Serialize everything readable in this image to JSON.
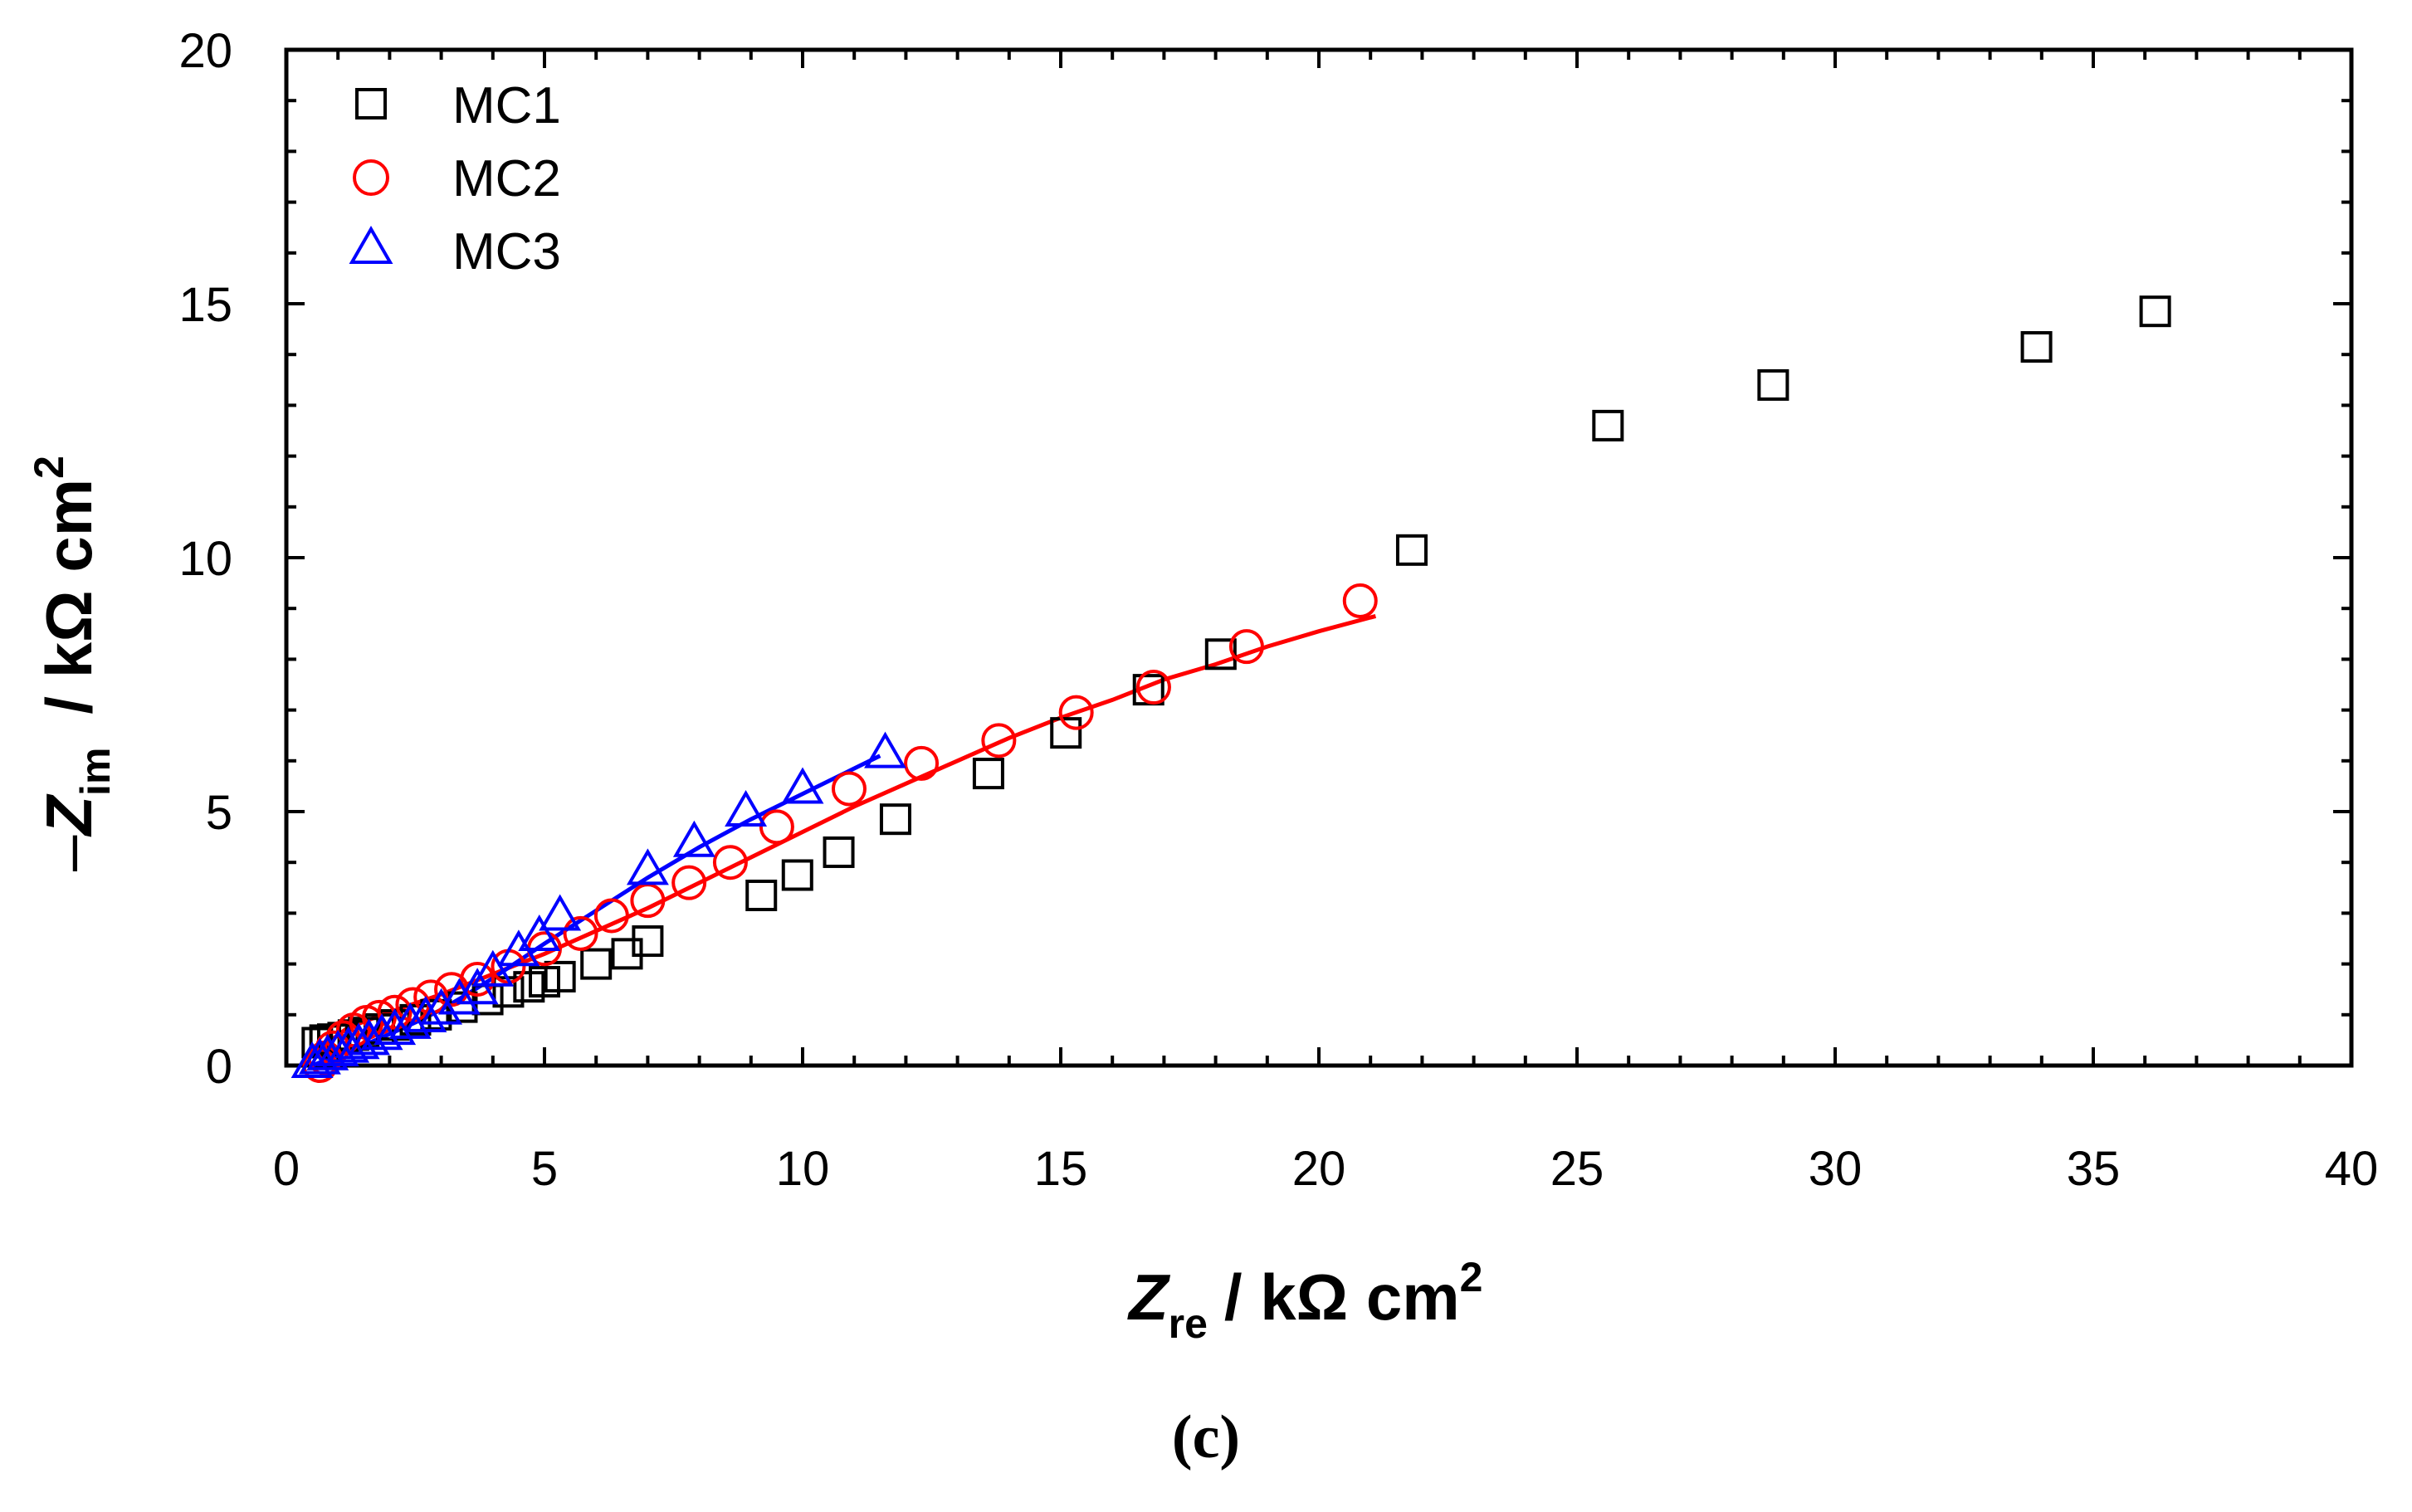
{
  "panel_label": "(c)",
  "chart_data": {
    "type": "scatter",
    "title": "",
    "xlabel": {
      "main": "Z",
      "sub": "re",
      "unit": "/ kΩ cm",
      "sup": "2"
    },
    "ylabel": {
      "prefix": "–",
      "main": "Z",
      "sub": "im",
      "unit": "/ kΩ cm",
      "sup": "2"
    },
    "xlim": [
      0,
      40
    ],
    "ylim": [
      0,
      20
    ],
    "xticks": [
      0,
      5,
      10,
      15,
      20,
      25,
      30,
      35,
      40
    ],
    "yticks": [
      0,
      5,
      10,
      15,
      20
    ],
    "grid": false,
    "legend_position": "top-left",
    "series": [
      {
        "name": "MC1",
        "marker": "square",
        "color": "#000000",
        "points": [
          [
            0.6,
            0.45
          ],
          [
            0.75,
            0.5
          ],
          [
            0.9,
            0.52
          ],
          [
            1.1,
            0.55
          ],
          [
            1.3,
            0.6
          ],
          [
            1.5,
            0.65
          ],
          [
            1.8,
            0.72
          ],
          [
            2.1,
            0.8
          ],
          [
            2.5,
            0.9
          ],
          [
            2.9,
            1.0
          ],
          [
            3.4,
            1.15
          ],
          [
            3.9,
            1.3
          ],
          [
            4.3,
            1.45
          ],
          [
            4.7,
            1.55
          ],
          [
            5.0,
            1.65
          ],
          [
            5.3,
            1.75
          ],
          [
            6.0,
            2.0
          ],
          [
            6.6,
            2.2
          ],
          [
            7.0,
            2.45
          ],
          [
            9.2,
            3.35
          ],
          [
            9.9,
            3.75
          ],
          [
            10.7,
            4.2
          ],
          [
            11.8,
            4.85
          ],
          [
            13.6,
            5.75
          ],
          [
            15.1,
            6.55
          ],
          [
            16.7,
            7.4
          ],
          [
            18.1,
            8.1
          ],
          [
            21.8,
            10.15
          ],
          [
            25.6,
            12.6
          ],
          [
            28.8,
            13.4
          ],
          [
            33.9,
            14.15
          ],
          [
            36.2,
            14.85
          ]
        ]
      },
      {
        "name": "MC2",
        "marker": "circle",
        "color": "#ff0000",
        "points": [
          [
            0.65,
            0.0
          ],
          [
            0.75,
            0.15
          ],
          [
            0.9,
            0.35
          ],
          [
            1.1,
            0.55
          ],
          [
            1.3,
            0.7
          ],
          [
            1.55,
            0.85
          ],
          [
            1.8,
            0.95
          ],
          [
            2.1,
            1.05
          ],
          [
            2.45,
            1.2
          ],
          [
            2.8,
            1.35
          ],
          [
            3.2,
            1.5
          ],
          [
            3.7,
            1.7
          ],
          [
            4.3,
            1.95
          ],
          [
            5.0,
            2.3
          ],
          [
            5.7,
            2.6
          ],
          [
            6.3,
            2.95
          ],
          [
            7.0,
            3.25
          ],
          [
            7.8,
            3.6
          ],
          [
            8.6,
            4.0
          ],
          [
            9.5,
            4.7
          ],
          [
            10.9,
            5.45
          ],
          [
            12.3,
            5.95
          ],
          [
            13.8,
            6.4
          ],
          [
            15.3,
            6.95
          ],
          [
            16.8,
            7.45
          ],
          [
            18.6,
            8.25
          ],
          [
            20.8,
            9.15
          ]
        ]
      },
      {
        "name": "MC3",
        "marker": "triangle",
        "color": "#0000ff",
        "points": [
          [
            0.5,
            0.05
          ],
          [
            0.65,
            0.12
          ],
          [
            0.8,
            0.2
          ],
          [
            1.0,
            0.28
          ],
          [
            1.2,
            0.35
          ],
          [
            1.4,
            0.42
          ],
          [
            1.6,
            0.5
          ],
          [
            1.85,
            0.6
          ],
          [
            2.1,
            0.7
          ],
          [
            2.4,
            0.82
          ],
          [
            2.7,
            0.95
          ],
          [
            3.0,
            1.1
          ],
          [
            3.35,
            1.3
          ],
          [
            3.7,
            1.5
          ],
          [
            4.0,
            1.85
          ],
          [
            4.5,
            2.25
          ],
          [
            4.9,
            2.55
          ],
          [
            5.3,
            2.95
          ],
          [
            7.0,
            3.85
          ],
          [
            7.9,
            4.4
          ],
          [
            8.9,
            5.0
          ],
          [
            10.0,
            5.45
          ],
          [
            11.6,
            6.15
          ]
        ]
      }
    ],
    "fits": [
      {
        "series": "MC2",
        "color": "#ff0000",
        "points": [
          [
            0.65,
            0.0
          ],
          [
            0.8,
            0.45
          ],
          [
            1.2,
            0.75
          ],
          [
            2.0,
            1.05
          ],
          [
            3.0,
            1.4
          ],
          [
            4.0,
            1.8
          ],
          [
            5.0,
            2.2
          ],
          [
            6.0,
            2.65
          ],
          [
            7.0,
            3.1
          ],
          [
            8.0,
            3.6
          ],
          [
            9.0,
            4.1
          ],
          [
            10.0,
            4.6
          ],
          [
            11.0,
            5.1
          ],
          [
            12.0,
            5.55
          ],
          [
            13.0,
            6.0
          ],
          [
            14.0,
            6.45
          ],
          [
            15.0,
            6.85
          ],
          [
            16.0,
            7.2
          ],
          [
            17.0,
            7.6
          ],
          [
            18.0,
            7.9
          ],
          [
            19.0,
            8.25
          ],
          [
            20.0,
            8.55
          ],
          [
            21.1,
            8.85
          ]
        ]
      },
      {
        "series": "MC3",
        "color": "#0000ff",
        "points": [
          [
            0.5,
            0.0
          ],
          [
            1.0,
            0.2
          ],
          [
            1.5,
            0.4
          ],
          [
            2.0,
            0.62
          ],
          [
            2.5,
            0.85
          ],
          [
            3.0,
            1.1
          ],
          [
            3.5,
            1.4
          ],
          [
            4.0,
            1.72
          ],
          [
            5.0,
            2.4
          ],
          [
            6.0,
            3.05
          ],
          [
            7.0,
            3.7
          ],
          [
            8.0,
            4.3
          ],
          [
            9.0,
            4.85
          ],
          [
            10.0,
            5.35
          ],
          [
            11.0,
            5.85
          ],
          [
            11.5,
            6.1
          ]
        ]
      }
    ]
  }
}
